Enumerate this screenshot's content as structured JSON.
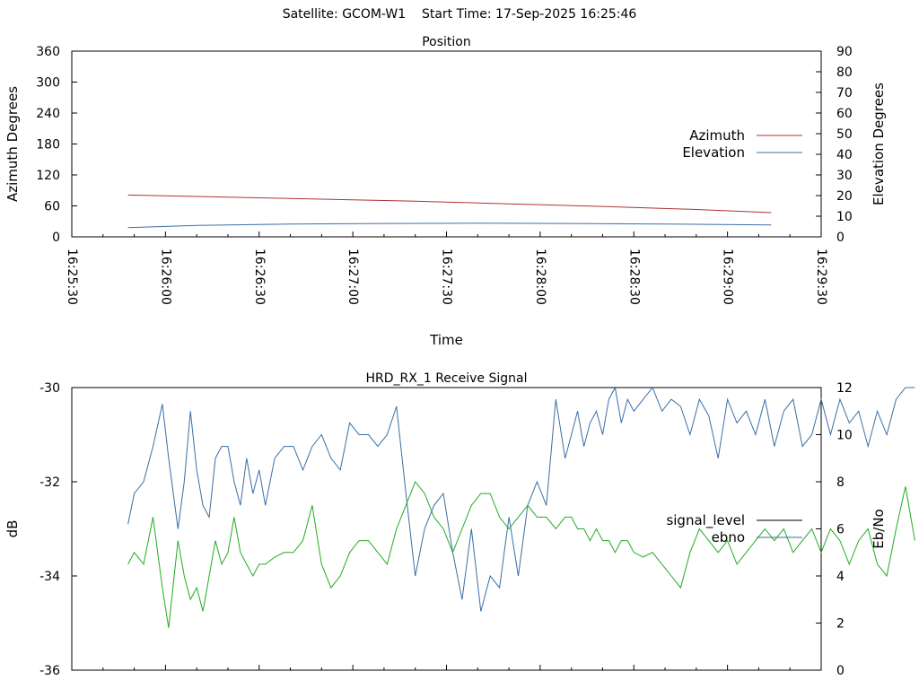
{
  "header": {
    "satellite": "Satellite: GCOM-W1",
    "start_time": "Start Time: 17-Sep-2025 16:25:46"
  },
  "chart_data": [
    {
      "type": "line",
      "title": "Position",
      "xlabel": "Time",
      "ylabel": "Azimuth Degrees",
      "y2label": "Elevation Degrees",
      "xlim": [
        "16:25:30",
        "16:29:30"
      ],
      "xticks": [
        "16:25:30",
        "16:26:00",
        "16:26:30",
        "16:27:00",
        "16:27:30",
        "16:28:00",
        "16:28:30",
        "16:29:00",
        "16:29:30"
      ],
      "ylim": [
        0,
        360
      ],
      "yticks": [
        0,
        60,
        120,
        180,
        240,
        300,
        360
      ],
      "y2lim": [
        0,
        90
      ],
      "y2ticks": [
        0,
        10,
        20,
        30,
        40,
        50,
        60,
        70,
        80,
        90
      ],
      "legend_position": "right",
      "series": [
        {
          "name": "Azimuth",
          "axis": "y",
          "color": "#b03030",
          "x": [
            "16:25:48",
            "16:26:20",
            "16:26:50",
            "16:27:20",
            "16:27:50",
            "16:28:20",
            "16:28:50",
            "16:29:14"
          ],
          "y": [
            81,
            77,
            73,
            69,
            64,
            59,
            53,
            47
          ]
        },
        {
          "name": "Elevation",
          "axis": "y2",
          "color": "#3a6ea5",
          "x": [
            "16:25:48",
            "16:26:10",
            "16:26:40",
            "16:27:10",
            "16:27:40",
            "16:28:10",
            "16:28:40",
            "16:29:14"
          ],
          "y": [
            4.5,
            5.5,
            6.2,
            6.5,
            6.6,
            6.5,
            6.2,
            5.8
          ]
        }
      ]
    },
    {
      "type": "line",
      "title": "HRD_RX_1 Receive Signal",
      "ylabel": "dB",
      "y2label": "Eb/No",
      "ylim": [
        -36,
        -30
      ],
      "yticks": [
        -36,
        -34,
        -32,
        -30
      ],
      "y2lim": [
        0,
        12
      ],
      "y2ticks": [
        0,
        2,
        4,
        6,
        8,
        10,
        12
      ],
      "legend_position": "right",
      "series": [
        {
          "name": "signal_level",
          "axis": "y",
          "color": "#000000",
          "y": []
        },
        {
          "name": "ebno",
          "axis": "y2",
          "color": "#3a6ea5",
          "x_sec": [
            18,
            20,
            23,
            26,
            29,
            31,
            34,
            36,
            38,
            40,
            42,
            44,
            46,
            48,
            50,
            52,
            54,
            56,
            58,
            60,
            62,
            65,
            68,
            71,
            74,
            77,
            80,
            83,
            86,
            89,
            92,
            95,
            98,
            101,
            104,
            107,
            110,
            113,
            116,
            119,
            122,
            125,
            128,
            131,
            134,
            137,
            140,
            143,
            146,
            149,
            152,
            155,
            158,
            160,
            162,
            164,
            166,
            168,
            170,
            172,
            174,
            176,
            178,
            180,
            183,
            186,
            189,
            192,
            195,
            198,
            201,
            204,
            207,
            210,
            213,
            216,
            219,
            222,
            225,
            228,
            231,
            234,
            237,
            240,
            243,
            246,
            249,
            252,
            255,
            258,
            261,
            264,
            267,
            270
          ],
          "y": [
            6.2,
            7.5,
            8.0,
            9.5,
            11.3,
            9.0,
            6.0,
            8.0,
            11.0,
            8.5,
            7.0,
            6.5,
            9.0,
            9.5,
            9.5,
            8.0,
            7.0,
            9.0,
            7.5,
            8.5,
            7.0,
            9.0,
            9.5,
            9.5,
            8.5,
            9.5,
            10.0,
            9.0,
            8.5,
            10.5,
            10.0,
            10.0,
            9.5,
            10.0,
            11.2,
            7.5,
            4.0,
            6.0,
            7.0,
            7.5,
            5.0,
            3.0,
            6.0,
            2.5,
            4.0,
            3.5,
            6.5,
            4.0,
            7.0,
            8.0,
            7.0,
            11.5,
            9.0,
            10.0,
            11.0,
            9.5,
            10.5,
            11.0,
            10.0,
            11.5,
            12.0,
            10.5,
            11.5,
            11.0,
            11.5,
            12.0,
            11.0,
            11.5,
            11.2,
            10.0,
            11.5,
            10.8,
            9.0,
            11.5,
            10.5,
            11.0,
            10.0,
            11.5,
            9.5,
            11.0,
            11.5,
            9.5,
            10.0,
            11.5,
            10.0,
            11.5,
            10.5,
            11.0,
            9.5,
            11.0,
            10.0,
            11.5,
            12.0,
            12.0
          ]
        },
        {
          "name": "",
          "axis": "y2",
          "color": "#22aa22",
          "x_sec": [
            18,
            20,
            23,
            26,
            29,
            31,
            34,
            36,
            38,
            40,
            42,
            44,
            46,
            48,
            50,
            52,
            54,
            56,
            58,
            60,
            62,
            65,
            68,
            71,
            74,
            77,
            80,
            83,
            86,
            89,
            92,
            95,
            98,
            101,
            104,
            107,
            110,
            113,
            116,
            119,
            122,
            125,
            128,
            131,
            134,
            137,
            140,
            143,
            146,
            149,
            152,
            155,
            158,
            160,
            162,
            164,
            166,
            168,
            170,
            172,
            174,
            176,
            178,
            180,
            183,
            186,
            189,
            192,
            195,
            198,
            201,
            204,
            207,
            210,
            213,
            216,
            219,
            222,
            225,
            228,
            231,
            234,
            237,
            240,
            243,
            246,
            249,
            252,
            255,
            258,
            261,
            264,
            267,
            270
          ],
          "y": [
            4.5,
            5.0,
            4.5,
            6.5,
            3.5,
            1.8,
            5.5,
            4.0,
            3.0,
            3.5,
            2.5,
            4.0,
            5.5,
            4.5,
            5.0,
            6.5,
            5.0,
            4.5,
            4.0,
            4.5,
            4.5,
            4.8,
            5.0,
            5.0,
            5.5,
            7.0,
            4.5,
            3.5,
            4.0,
            5.0,
            5.5,
            5.5,
            5.0,
            4.5,
            6.0,
            7.0,
            8.0,
            7.5,
            6.5,
            6.0,
            5.0,
            6.0,
            7.0,
            7.5,
            7.5,
            6.5,
            6.0,
            6.5,
            7.0,
            6.5,
            6.5,
            6.0,
            6.5,
            6.5,
            6.0,
            6.0,
            5.5,
            6.0,
            5.5,
            5.5,
            5.0,
            5.5,
            5.5,
            5.0,
            4.8,
            5.0,
            4.5,
            4.0,
            3.5,
            5.0,
            6.0,
            5.5,
            5.0,
            5.5,
            4.5,
            5.0,
            5.5,
            6.0,
            5.5,
            6.0,
            5.0,
            5.5,
            6.0,
            5.0,
            6.0,
            5.5,
            4.5,
            5.5,
            6.0,
            4.5,
            4.0,
            6.0,
            7.8,
            5.5
          ]
        }
      ]
    }
  ]
}
